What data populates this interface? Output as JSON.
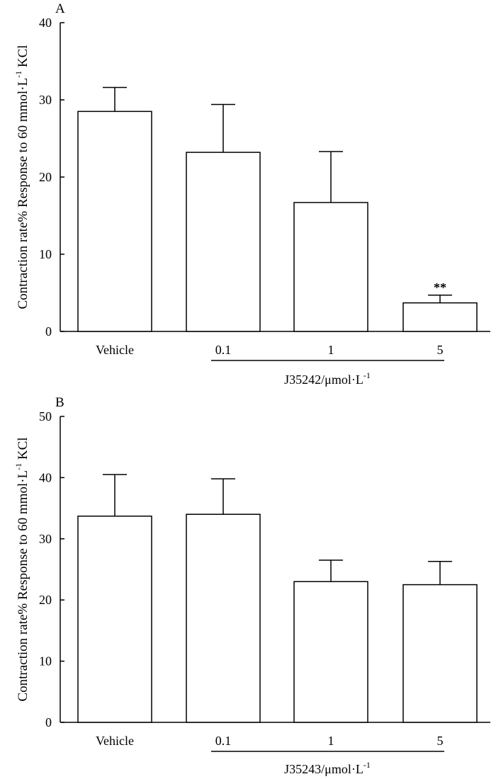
{
  "chart_data": [
    {
      "type": "bar",
      "panel_label": "A",
      "categories": [
        "Vehicle",
        "0.1",
        "1",
        "5"
      ],
      "values": [
        28.5,
        23.2,
        16.7,
        3.7
      ],
      "errors": [
        3.1,
        6.2,
        6.6,
        1.0
      ],
      "significance": [
        "",
        "",
        "",
        "**"
      ],
      "ylabel": {
        "pre": "Contraction rate% Response to 60 mmol·L",
        "sup": "-1",
        "post": " KCl"
      },
      "group_label": {
        "pre": "J35242/μmol·L",
        "sup": "-1"
      },
      "ylim": [
        0,
        40
      ],
      "yticks": [
        0,
        10,
        20,
        30,
        40
      ],
      "grid": false,
      "legend": "none"
    },
    {
      "type": "bar",
      "panel_label": "B",
      "categories": [
        "Vehicle",
        "0.1",
        "1",
        "5"
      ],
      "values": [
        33.7,
        34.0,
        23.0,
        22.5
      ],
      "errors": [
        6.8,
        5.8,
        3.5,
        3.8
      ],
      "significance": [
        "",
        "",
        "",
        ""
      ],
      "ylabel": {
        "pre": "Contraction rate% Response to 60 mmol·L",
        "sup": "-1",
        "post": " KCl"
      },
      "group_label": {
        "pre": "J35243/μmol·L",
        "sup": "-1"
      },
      "ylim": [
        0,
        50
      ],
      "yticks": [
        0,
        10,
        20,
        30,
        40,
        50
      ],
      "grid": false,
      "legend": "none"
    }
  ]
}
